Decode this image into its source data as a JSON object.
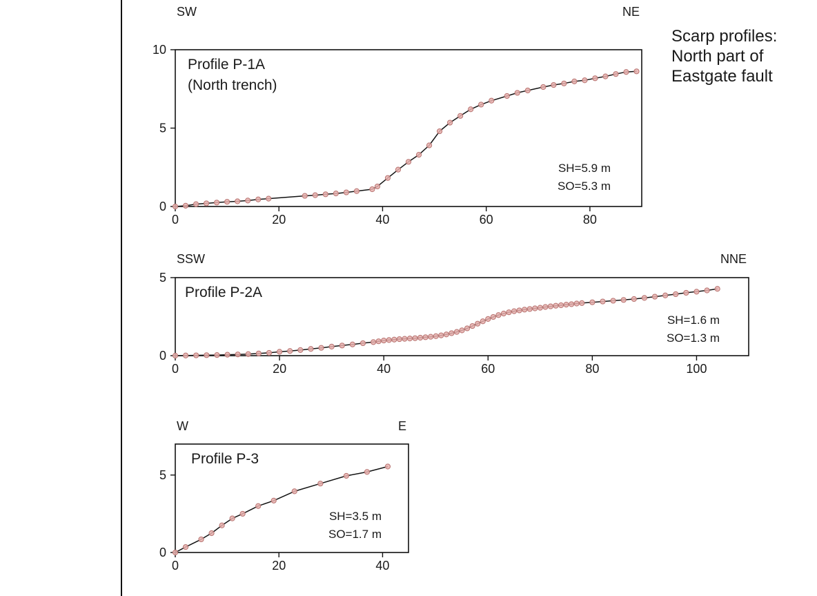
{
  "figure_title": {
    "lines": [
      "Scarp profiles:",
      "North part of",
      "Eastgate fault"
    ]
  },
  "colors": {
    "frame": "#111111",
    "line": "#111111",
    "point_fill": "#e8b0ae",
    "point_stroke": "#b77471"
  },
  "chart_data": [
    {
      "type": "line",
      "id": "p1a",
      "profile_name": [
        "Profile P-1A",
        "(North trench)"
      ],
      "dir_left": "SW",
      "dir_right": "NE",
      "notes": [
        "SH=5.9 m",
        "SO=5.3 m"
      ],
      "xlim": [
        0,
        90
      ],
      "ylim": [
        0,
        10
      ],
      "xticks": [
        0,
        20,
        40,
        60,
        80
      ],
      "yticks": [
        0,
        5,
        10
      ],
      "x": [
        0,
        2,
        4,
        6,
        8,
        10,
        12,
        14,
        16,
        18,
        25,
        27,
        29,
        31,
        33,
        35,
        38,
        39,
        41,
        43,
        45,
        47,
        49,
        51,
        53,
        55,
        57,
        59,
        61,
        64,
        66,
        68,
        71,
        73,
        75,
        77,
        79,
        81,
        83,
        85,
        87,
        89
      ],
      "y": [
        0.0,
        0.05,
        0.15,
        0.2,
        0.25,
        0.3,
        0.33,
        0.38,
        0.45,
        0.5,
        0.68,
        0.72,
        0.78,
        0.83,
        0.9,
        0.98,
        1.1,
        1.28,
        1.82,
        2.35,
        2.85,
        3.3,
        3.9,
        4.8,
        5.35,
        5.78,
        6.2,
        6.5,
        6.75,
        7.05,
        7.25,
        7.4,
        7.62,
        7.75,
        7.85,
        7.98,
        8.05,
        8.18,
        8.3,
        8.45,
        8.58,
        8.62
      ]
    },
    {
      "type": "line",
      "id": "p2a",
      "profile_name": [
        "Profile P-2A"
      ],
      "dir_left": "SSW",
      "dir_right": "NNE",
      "notes": [
        "SH=1.6 m",
        "SO=1.3 m"
      ],
      "xlim": [
        0,
        110
      ],
      "ylim": [
        0,
        5
      ],
      "xticks": [
        0,
        20,
        40,
        60,
        80,
        100
      ],
      "yticks": [
        0,
        5
      ],
      "x": [
        0,
        2,
        4,
        6,
        8,
        10,
        12,
        14,
        16,
        18,
        20,
        22,
        24,
        26,
        28,
        30,
        32,
        34,
        36,
        38,
        39,
        40,
        41,
        42,
        43,
        44,
        45,
        46,
        47,
        48,
        49,
        50,
        51,
        52,
        53,
        54,
        55,
        56,
        57,
        58,
        59,
        60,
        61,
        62,
        63,
        64,
        65,
        66,
        67,
        68,
        69,
        70,
        71,
        72,
        73,
        74,
        75,
        76,
        77,
        78,
        80,
        82,
        84,
        86,
        88,
        90,
        92,
        94,
        96,
        98,
        100,
        102,
        104
      ],
      "y": [
        0.0,
        0.01,
        0.02,
        0.03,
        0.04,
        0.06,
        0.08,
        0.1,
        0.14,
        0.18,
        0.25,
        0.3,
        0.36,
        0.43,
        0.5,
        0.58,
        0.65,
        0.72,
        0.8,
        0.87,
        0.92,
        0.97,
        1.0,
        1.03,
        1.06,
        1.08,
        1.1,
        1.12,
        1.15,
        1.18,
        1.21,
        1.25,
        1.3,
        1.36,
        1.44,
        1.52,
        1.62,
        1.75,
        1.9,
        2.05,
        2.2,
        2.35,
        2.48,
        2.6,
        2.7,
        2.78,
        2.85,
        2.9,
        2.95,
        2.99,
        3.03,
        3.07,
        3.12,
        3.16,
        3.2,
        3.23,
        3.27,
        3.3,
        3.34,
        3.37,
        3.42,
        3.47,
        3.52,
        3.57,
        3.63,
        3.7,
        3.78,
        3.86,
        3.94,
        4.03,
        4.1,
        4.18,
        4.28
      ]
    },
    {
      "type": "line",
      "id": "p3",
      "profile_name": [
        "Profile P-3"
      ],
      "dir_left": "W",
      "dir_right": "E",
      "notes": [
        "SH=3.5 m",
        "SO=1.7 m"
      ],
      "xlim": [
        0,
        45
      ],
      "ylim": [
        0,
        7
      ],
      "xticks": [
        0,
        20,
        40
      ],
      "yticks": [
        0,
        5
      ],
      "x": [
        0,
        2,
        5,
        7,
        9,
        11,
        13,
        16,
        19,
        23,
        28,
        33,
        37,
        41
      ],
      "y": [
        0.0,
        0.35,
        0.85,
        1.25,
        1.75,
        2.2,
        2.5,
        3.0,
        3.35,
        3.95,
        4.45,
        4.95,
        5.2,
        5.55
      ]
    }
  ]
}
